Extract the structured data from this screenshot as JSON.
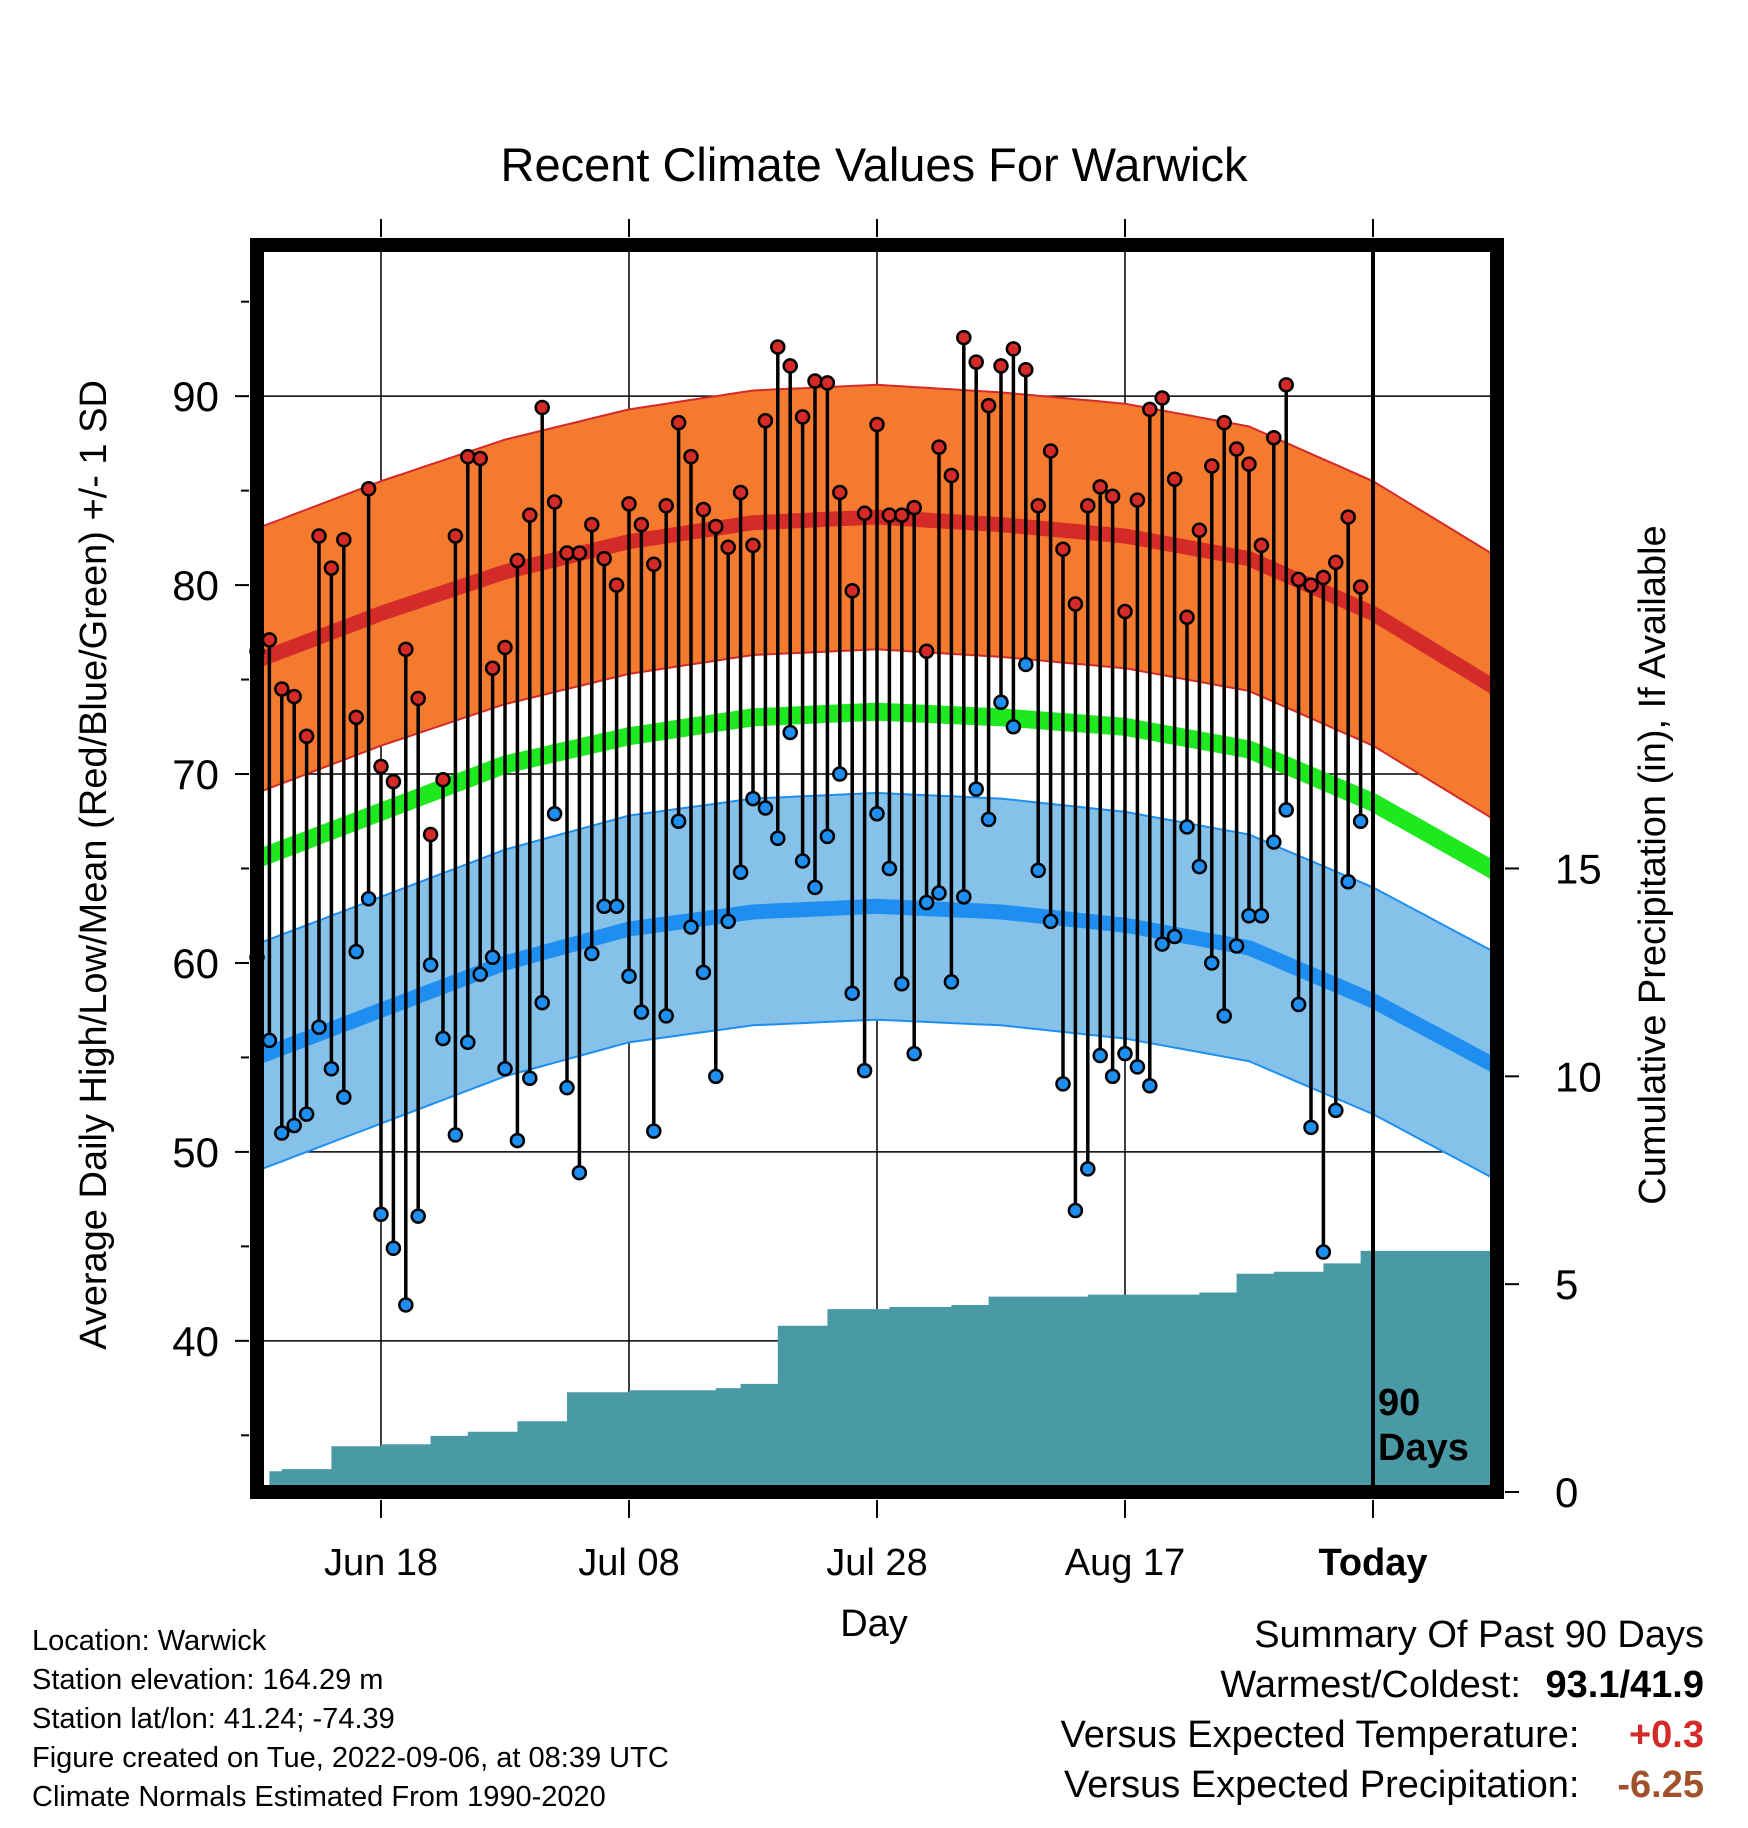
{
  "chart_data": {
    "type": "line",
    "title": "Recent Climate Values For Warwick",
    "xlabel": "Day",
    "ylabel_left": "Average Daily High/Low/Mean (Red/Blue/Green) +/- 1 SD",
    "ylabel_right": "Cumulative Precipitation (in), If Available",
    "x_tick_labels": [
      "Jun 18",
      "Jul 08",
      "Jul 28",
      "Aug 17",
      "Today"
    ],
    "x_range_days": [
      -90,
      10
    ],
    "today_label": "Today",
    "period_label_line1": "90",
    "period_label_line2": "Days",
    "ylim_left": [
      32,
      98
    ],
    "y_ticks_left": [
      40,
      50,
      60,
      70,
      80,
      90
    ],
    "ylim_right": [
      0,
      30
    ],
    "y_ticks_right": [
      0,
      5,
      10,
      15
    ],
    "grid": true,
    "normals": {
      "x_days": [
        -90,
        -80,
        -70,
        -60,
        -50,
        -40,
        -30,
        -20,
        -10,
        0,
        10
      ],
      "high_mean": [
        76.0,
        78.5,
        80.7,
        82.3,
        83.3,
        83.6,
        83.2,
        82.6,
        81.4,
        78.5,
        74.5
      ],
      "high_sd": 7.0,
      "mean": [
        65.5,
        68.0,
        70.5,
        72.0,
        73.0,
        73.3,
        73.0,
        72.5,
        71.3,
        68.5,
        64.8
      ],
      "low_mean": [
        55.0,
        57.5,
        60.0,
        61.8,
        62.7,
        63.0,
        62.7,
        62.0,
        60.8,
        58.0,
        54.5
      ],
      "low_sd": 6.0
    },
    "daily": {
      "x_days": [
        -90,
        -89,
        -88,
        -87,
        -86,
        -85,
        -84,
        -83,
        -82,
        -81,
        -80,
        -79,
        -78,
        -77,
        -76,
        -75,
        -74,
        -73,
        -72,
        -71,
        -70,
        -69,
        -68,
        -67,
        -66,
        -65,
        -64,
        -63,
        -62,
        -61,
        -60,
        -59,
        -58,
        -57,
        -56,
        -55,
        -54,
        -53,
        -52,
        -51,
        -50,
        -49,
        -48,
        -47,
        -46,
        -45,
        -44,
        -43,
        -42,
        -41,
        -40,
        -39,
        -38,
        -37,
        -36,
        -35,
        -34,
        -33,
        -32,
        -31,
        -30,
        -29,
        -28,
        -27,
        -26,
        -25,
        -24,
        -23,
        -22,
        -21,
        -20,
        -19,
        -18,
        -17,
        -16,
        -15,
        -14,
        -13,
        -12,
        -11,
        -10,
        -9,
        -8,
        -7,
        -6,
        -5,
        -4,
        -3,
        -2,
        -1
      ],
      "high": [
        76.5,
        77.1,
        74.5,
        74.1,
        72.0,
        82.6,
        80.9,
        82.4,
        73.0,
        85.1,
        70.4,
        69.6,
        76.6,
        74.0,
        66.8,
        69.7,
        82.6,
        86.8,
        86.7,
        75.6,
        76.7,
        81.3,
        83.7,
        89.4,
        84.4,
        81.7,
        81.7,
        83.2,
        81.4,
        80.0,
        84.3,
        83.2,
        81.1,
        84.2,
        88.6,
        86.8,
        84.0,
        83.1,
        82.0,
        84.9,
        82.1,
        88.7,
        92.6,
        91.6,
        88.9,
        90.8,
        90.7,
        84.9,
        79.7,
        83.8,
        88.5,
        83.7,
        83.7,
        84.1,
        76.5,
        87.3,
        85.8,
        93.1,
        91.8,
        89.5,
        91.6,
        92.5,
        91.4,
        84.2,
        87.1,
        81.9,
        79.0,
        84.2,
        85.2,
        84.7,
        78.6,
        84.5,
        89.3,
        89.9,
        85.6,
        78.3,
        82.9,
        86.3,
        88.6,
        87.2,
        86.4,
        82.1,
        87.8,
        90.6,
        80.3,
        80.0,
        80.4,
        81.2,
        83.6,
        79.9
      ],
      "low": [
        60.3,
        55.9,
        51.0,
        51.4,
        52.0,
        56.6,
        54.4,
        52.9,
        60.6,
        63.4,
        46.7,
        44.9,
        41.9,
        46.6,
        59.9,
        56.0,
        50.9,
        55.8,
        59.4,
        60.3,
        54.4,
        50.6,
        53.9,
        57.9,
        67.9,
        53.4,
        48.9,
        60.5,
        63.0,
        63.0,
        59.3,
        57.4,
        51.1,
        57.2,
        67.5,
        61.9,
        59.5,
        54.0,
        62.2,
        64.8,
        68.7,
        68.2,
        66.6,
        72.2,
        65.4,
        64.0,
        66.7,
        70.0,
        58.4,
        54.3,
        67.9,
        65.0,
        58.9,
        55.2,
        63.2,
        63.7,
        59.0,
        63.5,
        69.2,
        67.6,
        73.8,
        72.5,
        75.8,
        64.9,
        62.2,
        53.6,
        46.9,
        49.1,
        55.1,
        54.0,
        55.2,
        54.5,
        53.5,
        61.0,
        61.4,
        67.2,
        65.1,
        60.0,
        57.2,
        60.9,
        62.5,
        62.5,
        66.4,
        68.1,
        57.8,
        51.3,
        44.7,
        52.2,
        64.3,
        67.5
      ]
    },
    "precipitation": {
      "x_days": [
        -90,
        -89,
        -88,
        -84,
        -80,
        -76,
        -73,
        -69,
        -65,
        -60,
        -53,
        -51,
        -48,
        -44,
        -39,
        -34,
        -31,
        -23,
        -14,
        -11,
        -8,
        -4,
        -1,
        10
      ],
      "cumulative": [
        0.0,
        0.5,
        0.55,
        1.1,
        1.15,
        1.35,
        1.45,
        1.7,
        2.4,
        2.45,
        2.5,
        2.6,
        4.0,
        4.4,
        4.45,
        4.5,
        4.7,
        4.75,
        4.8,
        5.25,
        5.3,
        5.5,
        5.8,
        5.85
      ]
    },
    "colors": {
      "high_band": "#f47a30",
      "high_line": "#d42a28",
      "low_band": "#85c1e9",
      "low_line": "#1e8ff0",
      "mean_line": "#1ee81e",
      "precip_fill": "#4a9aa6",
      "high_marker": "#d42a28",
      "low_marker": "#1e8ff0"
    }
  },
  "meta": {
    "location": "Location: Warwick",
    "elevation": "Station elevation: 164.29 m",
    "latlon": "Station lat/lon: 41.24; -74.39",
    "created": "Figure created on Tue, 2022-09-06, at 08:39 UTC",
    "normals": "Climate Normals Estimated From 1990-2020"
  },
  "summary": {
    "title": "Summary Of Past 90 Days",
    "extremes_label": "Warmest/Coldest:",
    "warmest": "93.1",
    "separator": "/",
    "coldest": "41.9",
    "temp_label": "Versus Expected Temperature:",
    "temp_value": "+0.3",
    "temp_color": "#d42a28",
    "precip_label": "Versus Expected Precipitation:",
    "precip_value": "-6.25",
    "precip_color": "#a0522d"
  }
}
